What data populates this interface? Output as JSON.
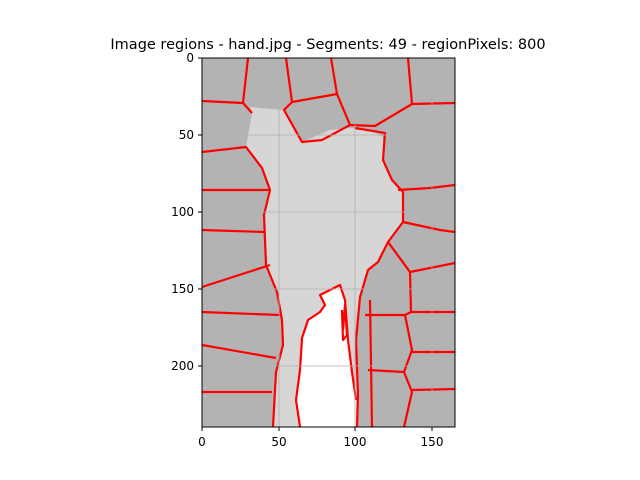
{
  "figure": {
    "title": "Image regions - hand.jpg - Segments: 49 - regionPixels: 800"
  },
  "axes": {
    "x_range": [
      0,
      165
    ],
    "y_range": [
      0,
      240
    ],
    "y_inverted": true,
    "grid": true,
    "x_ticks": [
      0,
      50,
      100,
      150
    ],
    "y_ticks": [
      0,
      50,
      100,
      150,
      200
    ],
    "x_tick_labels": [
      "0",
      "50",
      "100",
      "150"
    ],
    "y_tick_labels": [
      "0",
      "50",
      "100",
      "150",
      "200"
    ]
  },
  "colors": {
    "background_region": "#b3b3b3",
    "hand_region": "#d6d6d6",
    "bright_region": "#ffffff",
    "boundary": "#ff0000",
    "grid": "#b0b0b0",
    "axes": "#000000"
  }
}
